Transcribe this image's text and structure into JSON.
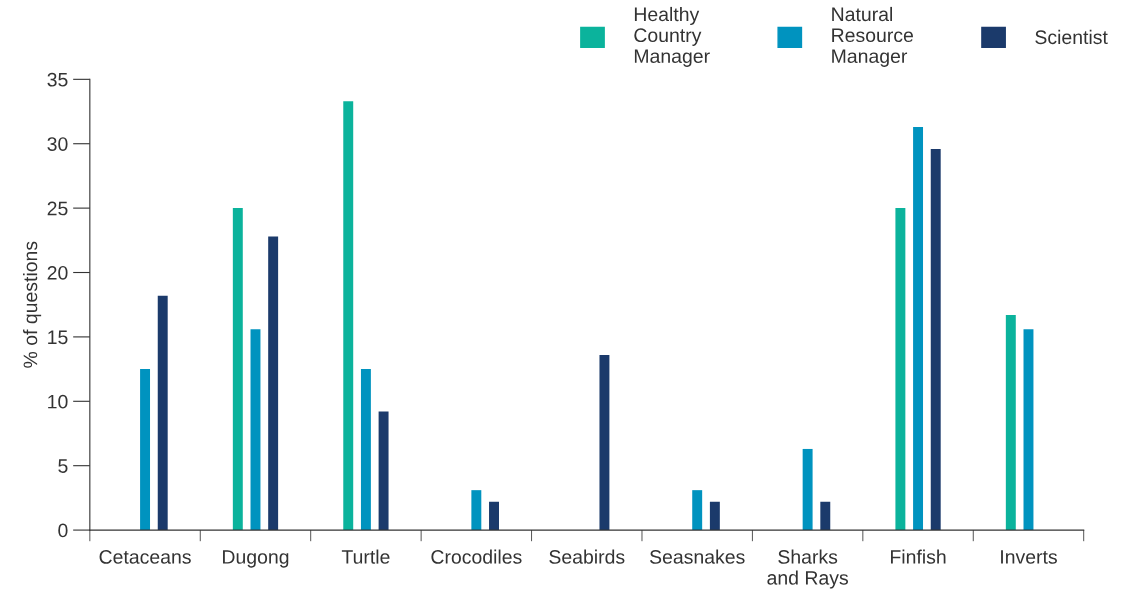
{
  "chart_data": {
    "type": "bar",
    "ylabel": "% of questions",
    "categories": [
      "Cetaceans",
      "Dugong",
      "Turtle",
      "Crocodiles",
      "Seabirds",
      "Seasnakes",
      "Sharks\nand Rays",
      "Finfish",
      "Inverts"
    ],
    "series": [
      {
        "name": "Healthy\nCountry\nManager",
        "color": "#0bb39c",
        "values": [
          0,
          25,
          33.3,
          0,
          0,
          0,
          0,
          25,
          16.7
        ]
      },
      {
        "name": "Natural\nResource\nManager",
        "color": "#0093bf",
        "values": [
          12.5,
          15.6,
          12.5,
          3.1,
          0,
          3.1,
          6.3,
          31.3,
          15.6
        ]
      },
      {
        "name": "Scientist",
        "color": "#1b3a6b",
        "values": [
          18.2,
          22.8,
          9.2,
          2.2,
          13.6,
          2.2,
          2.2,
          29.6,
          0
        ]
      }
    ],
    "ylim": [
      0,
      35
    ],
    "yticks": [
      0,
      5,
      10,
      15,
      20,
      25,
      30,
      35
    ],
    "grid": false,
    "legend": "top right"
  }
}
